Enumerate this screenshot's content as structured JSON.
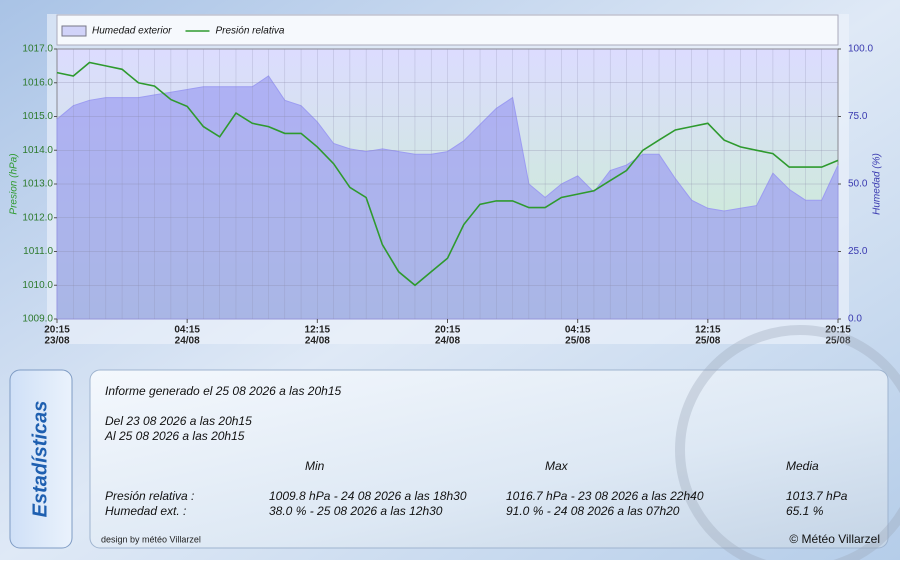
{
  "chart_data": {
    "type": "line",
    "legend": "top",
    "grid": true,
    "ylabel": "Presion (hPa)",
    "y2label": "Humedad (%)",
    "x": [
      "23/08 20:15",
      "23/08 21:15",
      "23/08 22:15",
      "23/08 23:15",
      "24/08 00:15",
      "24/08 01:15",
      "24/08 02:15",
      "24/08 03:15",
      "24/08 04:15",
      "24/08 05:15",
      "24/08 06:15",
      "24/08 07:15",
      "24/08 08:15",
      "24/08 09:15",
      "24/08 10:15",
      "24/08 11:15",
      "24/08 12:15",
      "24/08 13:15",
      "24/08 14:15",
      "24/08 15:15",
      "24/08 16:15",
      "24/08 17:15",
      "24/08 18:15",
      "24/08 19:15",
      "24/08 20:15",
      "24/08 21:15",
      "24/08 22:15",
      "24/08 23:15",
      "25/08 00:15",
      "25/08 01:15",
      "25/08 02:15",
      "25/08 03:15",
      "25/08 04:15",
      "25/08 05:15",
      "25/08 06:15",
      "25/08 07:15",
      "25/08 08:15",
      "25/08 09:15",
      "25/08 10:15",
      "25/08 11:15",
      "25/08 12:15",
      "25/08 13:15",
      "25/08 14:15",
      "25/08 15:15",
      "25/08 16:15",
      "25/08 17:15",
      "25/08 18:15",
      "25/08 19:15",
      "25/08 20:15"
    ],
    "xticks": [
      {
        "value": "23/08 20:15",
        "label": [
          "20:15",
          "23/08"
        ]
      },
      {
        "value": "24/08 04:15",
        "label": [
          "04:15",
          "24/08"
        ]
      },
      {
        "value": "24/08 12:15",
        "label": [
          "12:15",
          "24/08"
        ]
      },
      {
        "value": "24/08 20:15",
        "label": [
          "20:15",
          "24/08"
        ]
      },
      {
        "value": "25/08 04:15",
        "label": [
          "04:15",
          "25/08"
        ]
      },
      {
        "value": "25/08 12:15",
        "label": [
          "12:15",
          "25/08"
        ]
      },
      {
        "value": "25/08 20:15",
        "label": [
          "20:15",
          "25/08"
        ]
      }
    ],
    "ylim": [
      1009,
      1017
    ],
    "yticks": [
      {
        "value": 1009,
        "label": "1009.0"
      },
      {
        "value": 1010,
        "label": "1010.0"
      },
      {
        "value": 1011,
        "label": "1011.0"
      },
      {
        "value": 1012,
        "label": "1012.0"
      },
      {
        "value": 1013,
        "label": "1013.0"
      },
      {
        "value": 1014,
        "label": "1014.0"
      },
      {
        "value": 1015,
        "label": "1015.0"
      },
      {
        "value": 1016,
        "label": "1016.0"
      },
      {
        "value": 1017,
        "label": "1017.0"
      }
    ],
    "y2lim": [
      0,
      100
    ],
    "y2ticks": [
      {
        "value": 0,
        "label": "0.0"
      },
      {
        "value": 25,
        "label": "25.0"
      },
      {
        "value": 50,
        "label": "50.0"
      },
      {
        "value": 75,
        "label": "75.0"
      },
      {
        "value": 100,
        "label": "100.0"
      }
    ],
    "series": [
      {
        "name": "Humedad exterior",
        "color": "#9c9cf2",
        "type": "area",
        "axis": "y2",
        "values": [
          74,
          79,
          81,
          82,
          82,
          82,
          83,
          84,
          85,
          86,
          86,
          86,
          86,
          90,
          81,
          79,
          73,
          65,
          63,
          62,
          63,
          62,
          61,
          61,
          62,
          66,
          72,
          78,
          82,
          50,
          45,
          50,
          53,
          47,
          55,
          57,
          61,
          61,
          52,
          44,
          41,
          40,
          41,
          42,
          54,
          48,
          44,
          44,
          57
        ]
      },
      {
        "name": "Presión relativa",
        "color": "#2e9a2e",
        "type": "line",
        "values": [
          1016.3,
          1016.2,
          1016.6,
          1016.5,
          1016.4,
          1016.0,
          1015.9,
          1015.5,
          1015.3,
          1014.7,
          1014.4,
          1015.1,
          1014.8,
          1014.7,
          1014.5,
          1014.5,
          1014.1,
          1013.6,
          1012.9,
          1012.6,
          1011.2,
          1010.4,
          1010.0,
          1010.4,
          1010.8,
          1011.8,
          1012.4,
          1012.5,
          1012.5,
          1012.3,
          1012.3,
          1012.6,
          1012.7,
          1012.8,
          1013.1,
          1013.4,
          1014.0,
          1014.3,
          1014.6,
          1014.7,
          1014.8,
          1014.3,
          1014.1,
          1014.0,
          1013.9,
          1013.5,
          1013.5,
          1013.5,
          1013.7
        ]
      }
    ]
  },
  "stats": {
    "tab": "Estadísticas",
    "generated": "Informe generado el 25 08 2026 a las 20h15",
    "from": "Del 23 08 2026 a las 20h15",
    "to": "Al 25 08 2026 a las 20h15",
    "headers": [
      "Min",
      "Max",
      "Media"
    ],
    "rows": [
      {
        "label": "Presión relativa :",
        "min": "1009.8 hPa - 24 08 2026 a las 18h30",
        "max": "1016.7 hPa - 23 08 2026 a las 22h40",
        "mean": "1013.7 hPa"
      },
      {
        "label": "Humedad ext. :",
        "min": "38.0 % - 25 08 2026 a las 12h30",
        "max": "91.0 % - 24 08 2026 a las 07h20",
        "mean": "65.1 %"
      }
    ],
    "design": "design by météo Villarzel",
    "copyright": "© Météo Villarzel"
  }
}
